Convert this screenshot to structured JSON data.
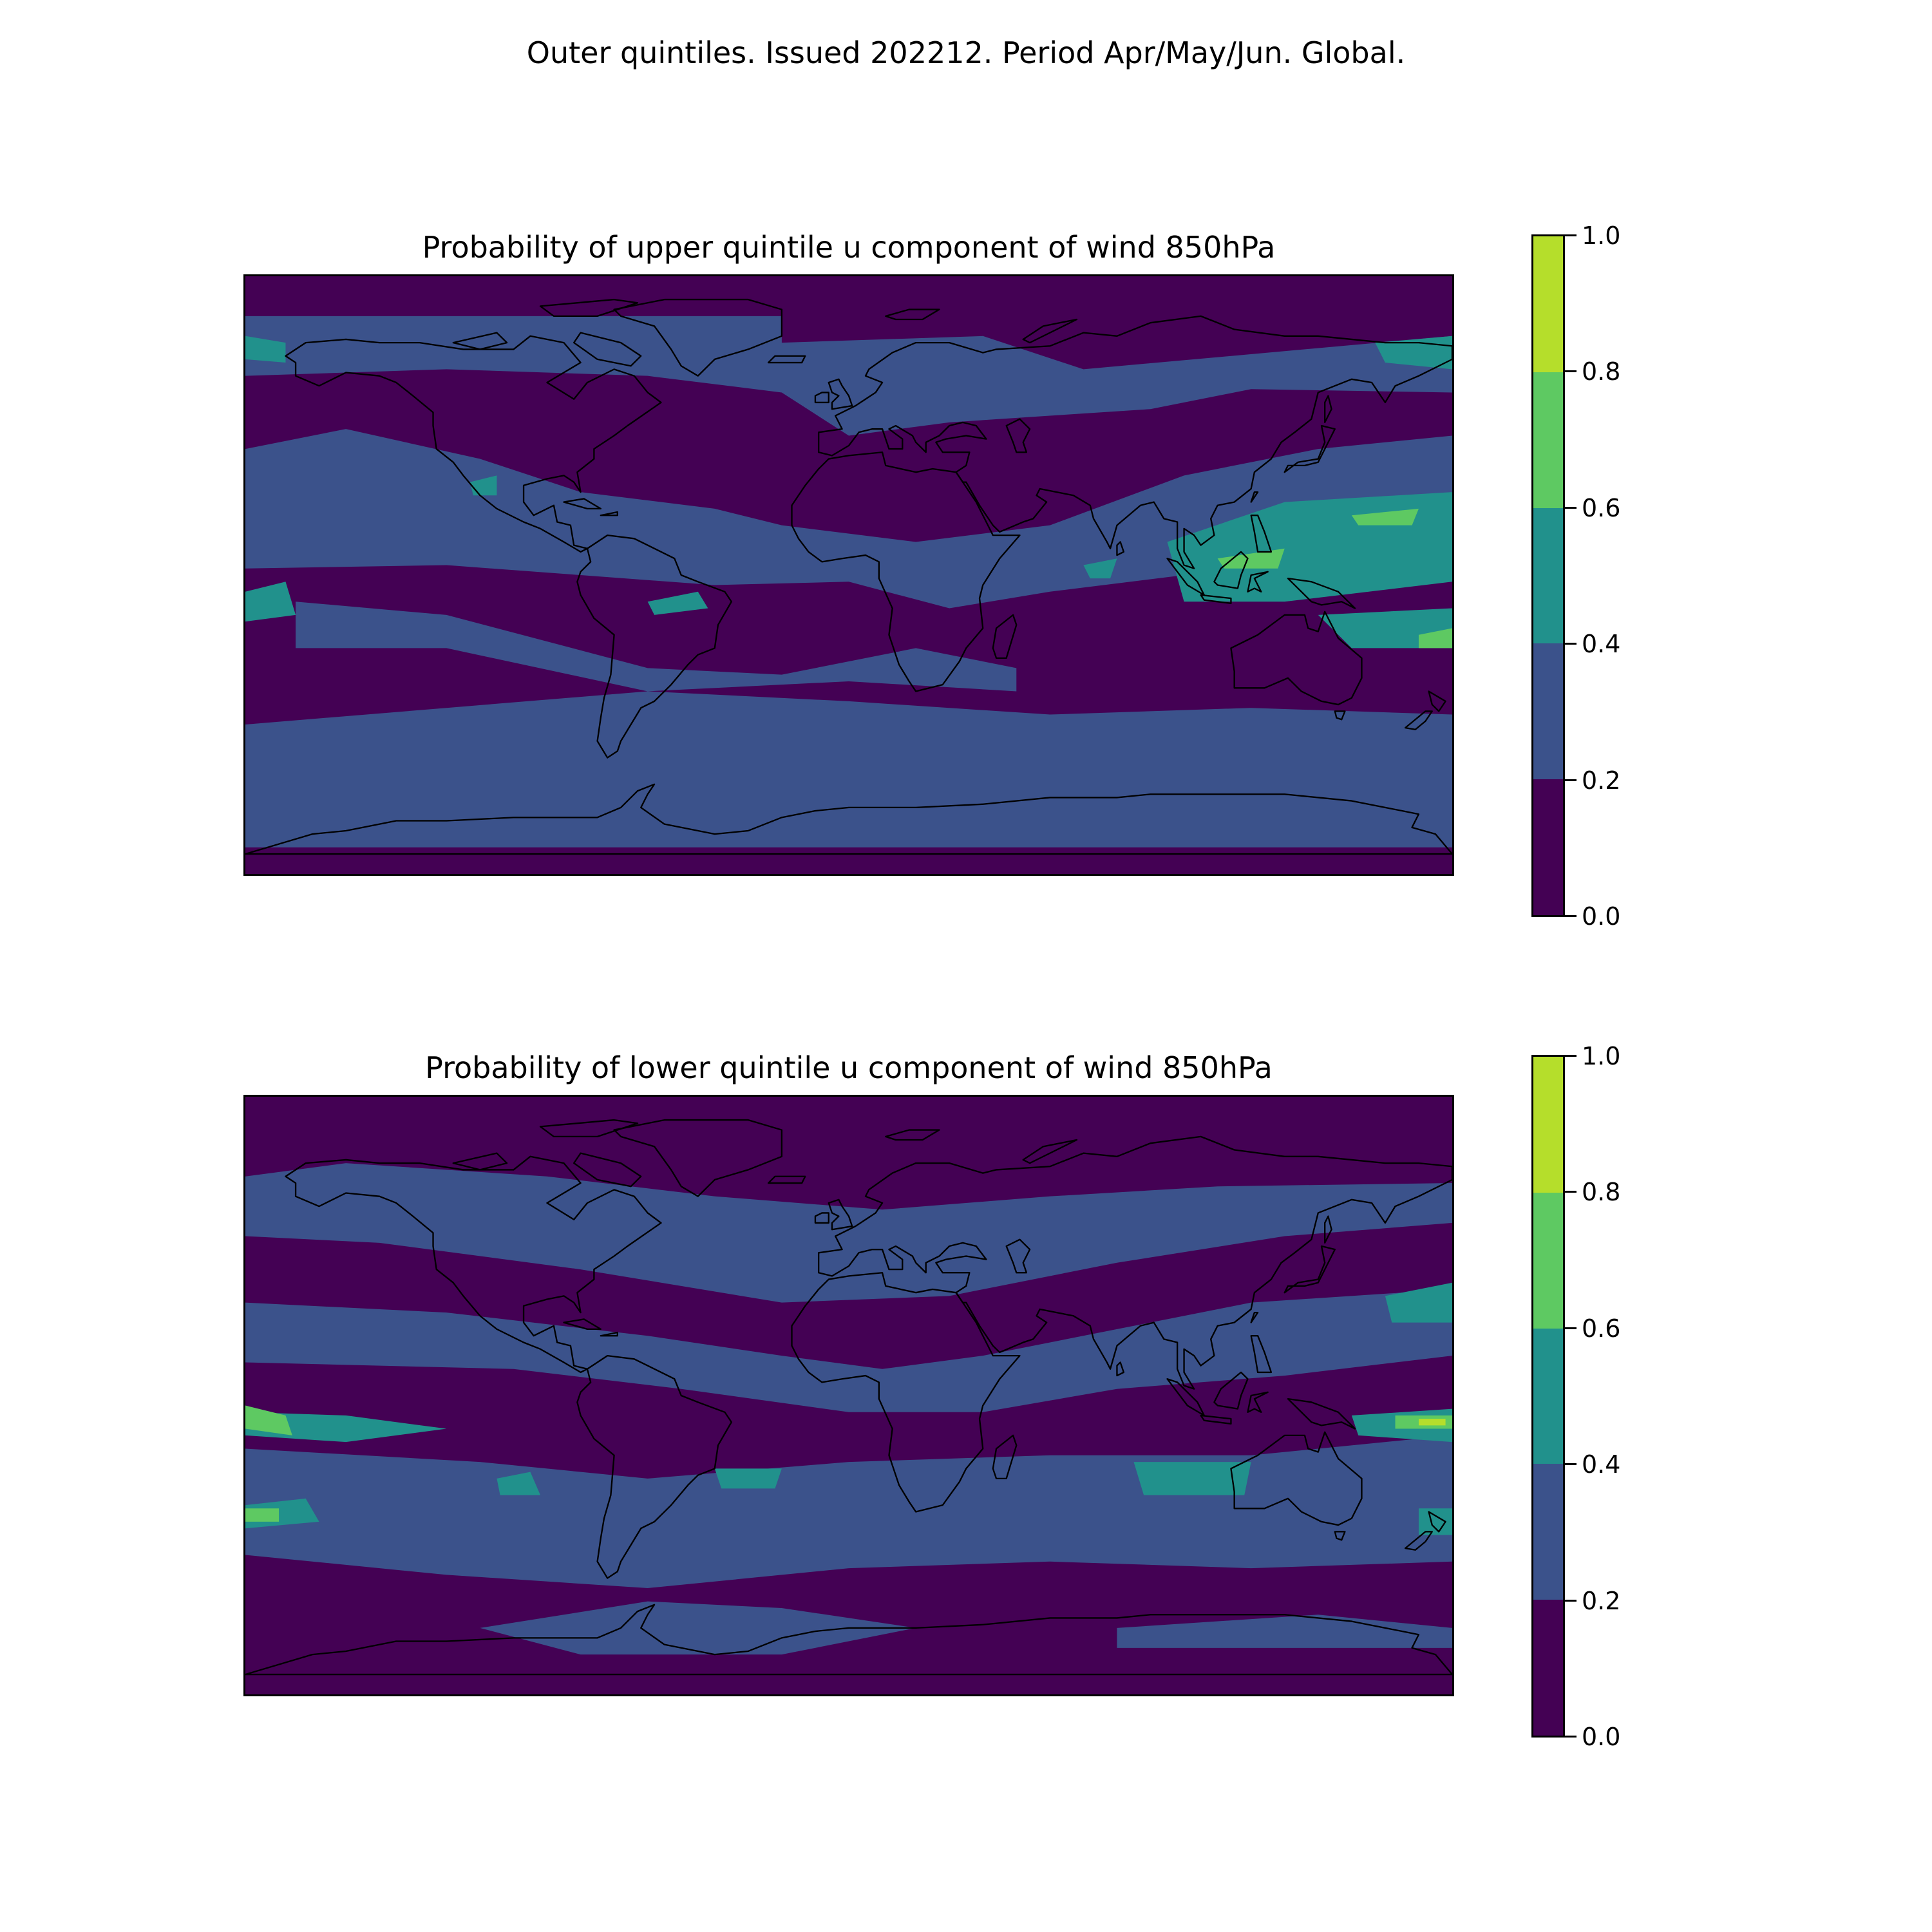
{
  "figure": {
    "title": "Outer quintiles. Issued 202212. Period Apr/May/Jun. Global."
  },
  "colorbar": {
    "levels": [
      0.0,
      0.2,
      0.4,
      0.6,
      0.8,
      1.0
    ],
    "tick_labels": [
      "1.0",
      "0.8",
      "0.6",
      "0.4",
      "0.2",
      "0.0"
    ],
    "colors": [
      "#440154",
      "#3b528b",
      "#21918c",
      "#5ec962",
      "#b5de2b"
    ]
  },
  "panels": [
    {
      "title": "Probability of upper quintile u component of wind 850hPa",
      "background_color": "#440154",
      "regions": [
        {
          "level": 1,
          "poly": [
            [
              -180,
              78
            ],
            [
              -20,
              78
            ],
            [
              -20,
              70
            ],
            [
              40,
              72
            ],
            [
              70,
              62
            ],
            [
              180,
              72
            ],
            [
              180,
              55
            ],
            [
              120,
              56
            ],
            [
              90,
              50
            ],
            [
              60,
              48
            ],
            [
              30,
              46
            ],
            [
              0,
              42
            ],
            [
              -20,
              55
            ],
            [
              -60,
              60
            ],
            [
              -120,
              62
            ],
            [
              -180,
              60
            ]
          ]
        },
        {
          "level": 1,
          "poly": [
            [
              -180,
              38
            ],
            [
              -150,
              44
            ],
            [
              -110,
              35
            ],
            [
              -80,
              25
            ],
            [
              -40,
              20
            ],
            [
              -20,
              15
            ],
            [
              20,
              10
            ],
            [
              60,
              15
            ],
            [
              100,
              30
            ],
            [
              140,
              38
            ],
            [
              180,
              42
            ],
            [
              180,
              10
            ],
            [
              140,
              5
            ],
            [
              100,
              0
            ],
            [
              60,
              -5
            ],
            [
              30,
              -10
            ],
            [
              0,
              -2
            ],
            [
              -40,
              -3
            ],
            [
              -80,
              0
            ],
            [
              -120,
              3
            ],
            [
              -180,
              2
            ]
          ]
        },
        {
          "level": 1,
          "poly": [
            [
              -180,
              -45
            ],
            [
              -120,
              -40
            ],
            [
              -60,
              -35
            ],
            [
              0,
              -38
            ],
            [
              60,
              -42
            ],
            [
              120,
              -40
            ],
            [
              180,
              -42
            ],
            [
              180,
              -82
            ],
            [
              -180,
              -82
            ]
          ]
        },
        {
          "level": 1,
          "poly": [
            [
              -165,
              -8
            ],
            [
              -120,
              -12
            ],
            [
              -60,
              -28
            ],
            [
              -20,
              -30
            ],
            [
              20,
              -22
            ],
            [
              50,
              -28
            ],
            [
              50,
              -35
            ],
            [
              0,
              -32
            ],
            [
              -60,
              -35
            ],
            [
              -120,
              -22
            ],
            [
              -165,
              -22
            ]
          ]
        },
        {
          "level": 2,
          "poly": [
            [
              95,
              10
            ],
            [
              130,
              22
            ],
            [
              180,
              25
            ],
            [
              180,
              -2
            ],
            [
              130,
              -8
            ],
            [
              100,
              -8
            ]
          ]
        },
        {
          "level": 2,
          "poly": [
            [
              -180,
              -5
            ],
            [
              -168,
              -2
            ],
            [
              -165,
              -12
            ],
            [
              -180,
              -14
            ]
          ]
        },
        {
          "level": 2,
          "poly": [
            [
              140,
              -12
            ],
            [
              180,
              -10
            ],
            [
              180,
              -22
            ],
            [
              150,
              -22
            ]
          ]
        },
        {
          "level": 2,
          "poly": [
            [
              -60,
              -8
            ],
            [
              -45,
              -5
            ],
            [
              -42,
              -10
            ],
            [
              -58,
              -12
            ]
          ]
        },
        {
          "level": 2,
          "poly": [
            [
              -180,
              72
            ],
            [
              -168,
              70
            ],
            [
              -168,
              64
            ],
            [
              -180,
              65
            ]
          ]
        },
        {
          "level": 2,
          "poly": [
            [
              -113,
              28
            ],
            [
              -105,
              30
            ],
            [
              -105,
              24
            ],
            [
              -112,
              24
            ]
          ]
        },
        {
          "level": 2,
          "poly": [
            [
              70,
              3
            ],
            [
              80,
              5
            ],
            [
              78,
              -1
            ],
            [
              72,
              -1
            ]
          ]
        },
        {
          "level": 2,
          "poly": [
            [
              157,
              70
            ],
            [
              180,
              72
            ],
            [
              180,
              62
            ],
            [
              160,
              64
            ]
          ]
        },
        {
          "level": 3,
          "poly": [
            [
              150,
              18
            ],
            [
              170,
              20
            ],
            [
              168,
              15
            ],
            [
              152,
              15
            ]
          ]
        },
        {
          "level": 3,
          "poly": [
            [
              170,
              -18
            ],
            [
              180,
              -16
            ],
            [
              180,
              -22
            ],
            [
              170,
              -22
            ]
          ]
        },
        {
          "level": 3,
          "poly": [
            [
              110,
              5
            ],
            [
              130,
              8
            ],
            [
              128,
              2
            ],
            [
              112,
              2
            ]
          ]
        }
      ]
    },
    {
      "title": "Probability of lower quintile u component of wind 850hPa",
      "background_color": "#440154",
      "regions": [
        {
          "level": 1,
          "poly": [
            [
              -180,
              66
            ],
            [
              -150,
              70
            ],
            [
              -90,
              66
            ],
            [
              -40,
              60
            ],
            [
              10,
              56
            ],
            [
              60,
              60
            ],
            [
              110,
              63
            ],
            [
              180,
              64
            ],
            [
              180,
              52
            ],
            [
              130,
              48
            ],
            [
              80,
              40
            ],
            [
              30,
              30
            ],
            [
              -20,
              28
            ],
            [
              -80,
              38
            ],
            [
              -140,
              46
            ],
            [
              -180,
              48
            ]
          ]
        },
        {
          "level": 1,
          "poly": [
            [
              -180,
              28
            ],
            [
              -120,
              25
            ],
            [
              -60,
              18
            ],
            [
              -20,
              12
            ],
            [
              10,
              8
            ],
            [
              40,
              12
            ],
            [
              80,
              20
            ],
            [
              120,
              28
            ],
            [
              180,
              32
            ],
            [
              180,
              12
            ],
            [
              130,
              6
            ],
            [
              80,
              2
            ],
            [
              40,
              -5
            ],
            [
              0,
              -5
            ],
            [
              -50,
              2
            ],
            [
              -100,
              8
            ],
            [
              -180,
              10
            ]
          ]
        },
        {
          "level": 1,
          "poly": [
            [
              -180,
              -16
            ],
            [
              -110,
              -20
            ],
            [
              -60,
              -25
            ],
            [
              0,
              -20
            ],
            [
              60,
              -18
            ],
            [
              120,
              -18
            ],
            [
              180,
              -12
            ],
            [
              180,
              -50
            ],
            [
              120,
              -52
            ],
            [
              60,
              -50
            ],
            [
              0,
              -52
            ],
            [
              -60,
              -58
            ],
            [
              -120,
              -54
            ],
            [
              -180,
              -48
            ]
          ]
        },
        {
          "level": 1,
          "poly": [
            [
              -110,
              -70
            ],
            [
              -60,
              -62
            ],
            [
              -20,
              -64
            ],
            [
              20,
              -70
            ],
            [
              -20,
              -78
            ],
            [
              -80,
              -78
            ]
          ]
        },
        {
          "level": 1,
          "poly": [
            [
              80,
              -70
            ],
            [
              140,
              -66
            ],
            [
              180,
              -70
            ],
            [
              180,
              -76
            ],
            [
              120,
              -76
            ],
            [
              80,
              -76
            ]
          ]
        },
        {
          "level": 2,
          "poly": [
            [
              -180,
              -5
            ],
            [
              -150,
              -6
            ],
            [
              -120,
              -10
            ],
            [
              -150,
              -14
            ],
            [
              -180,
              -12
            ]
          ]
        },
        {
          "level": 2,
          "poly": [
            [
              -180,
              -33
            ],
            [
              -162,
              -31
            ],
            [
              -158,
              -38
            ],
            [
              -180,
              -40
            ]
          ]
        },
        {
          "level": 2,
          "poly": [
            [
              150,
              -6
            ],
            [
              180,
              -4
            ],
            [
              180,
              -14
            ],
            [
              152,
              -12
            ]
          ]
        },
        {
          "level": 2,
          "poly": [
            [
              160,
              30
            ],
            [
              180,
              34
            ],
            [
              180,
              22
            ],
            [
              162,
              22
            ]
          ]
        },
        {
          "level": 2,
          "poly": [
            [
              170,
              -34
            ],
            [
              180,
              -34
            ],
            [
              180,
              -42
            ],
            [
              170,
              -42
            ]
          ]
        },
        {
          "level": 2,
          "poly": [
            [
              -105,
              -25
            ],
            [
              -95,
              -23
            ],
            [
              -92,
              -30
            ],
            [
              -104,
              -30
            ]
          ]
        },
        {
          "level": 2,
          "poly": [
            [
              85,
              -20
            ],
            [
              120,
              -20
            ],
            [
              118,
              -30
            ],
            [
              88,
              -30
            ]
          ]
        },
        {
          "level": 2,
          "poly": [
            [
              -40,
              -22
            ],
            [
              -20,
              -22
            ],
            [
              -22,
              -28
            ],
            [
              -38,
              -28
            ]
          ]
        },
        {
          "level": 3,
          "poly": [
            [
              -180,
              -3
            ],
            [
              -168,
              -6
            ],
            [
              -166,
              -12
            ],
            [
              -180,
              -10
            ]
          ]
        },
        {
          "level": 3,
          "poly": [
            [
              -180,
              -34
            ],
            [
              -170,
              -34
            ],
            [
              -170,
              -38
            ],
            [
              -180,
              -38
            ]
          ]
        },
        {
          "level": 3,
          "poly": [
            [
              163,
              -6
            ],
            [
              180,
              -6
            ],
            [
              180,
              -10
            ],
            [
              163,
              -10
            ]
          ]
        },
        {
          "level": 4,
          "poly": [
            [
              170,
              -7
            ],
            [
              178,
              -7
            ],
            [
              178,
              -9
            ],
            [
              170,
              -9
            ]
          ]
        }
      ]
    }
  ]
}
